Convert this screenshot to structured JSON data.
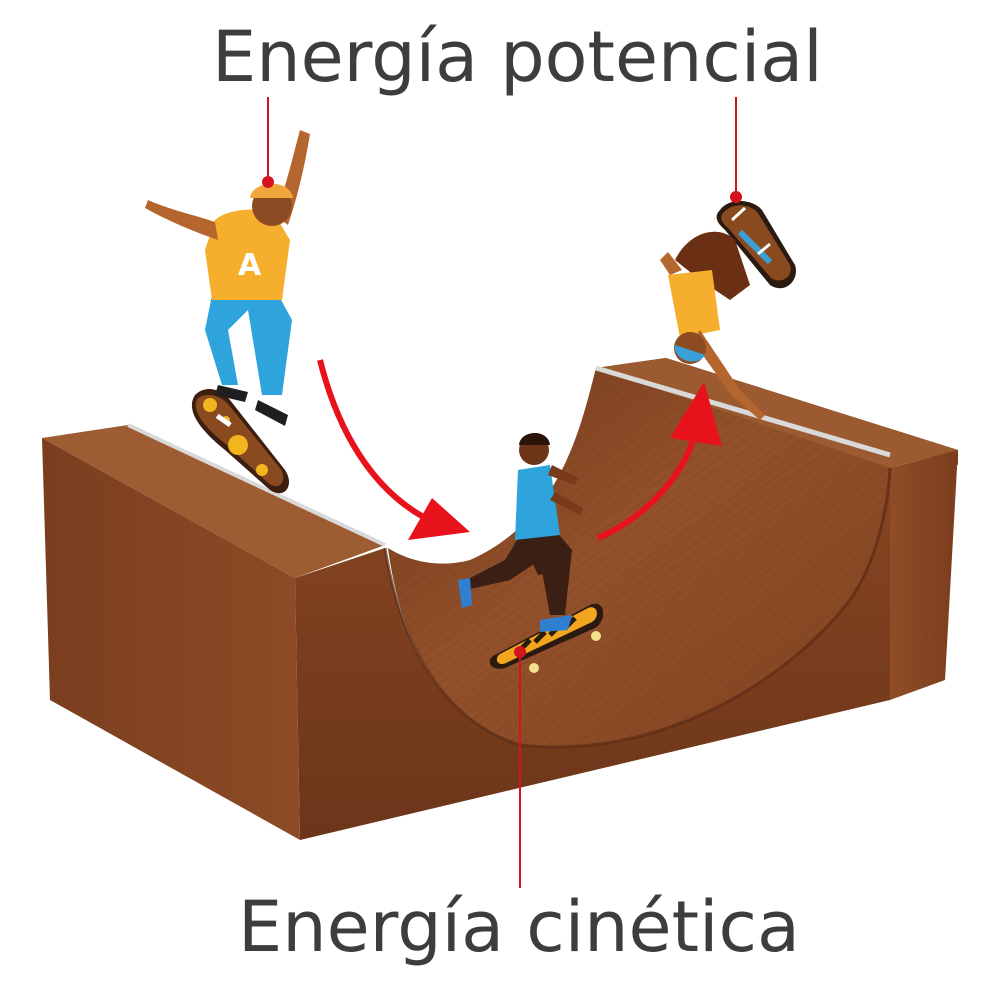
{
  "labels": {
    "potential": "Energía potencial",
    "kinetic": "Energía cinética"
  },
  "skater_top_left": {
    "shirt_letter": "A"
  },
  "colors": {
    "ramp_front": "#7d4020",
    "ramp_side": "#8a4a25",
    "ramp_top": "#9a5a2e",
    "ramp_surface": "#8e4a27",
    "ramp_coping": "#cfcfcf",
    "arrow": "#e8121b",
    "pointer_line": "#d4141c",
    "text": "#3d3d3d"
  }
}
